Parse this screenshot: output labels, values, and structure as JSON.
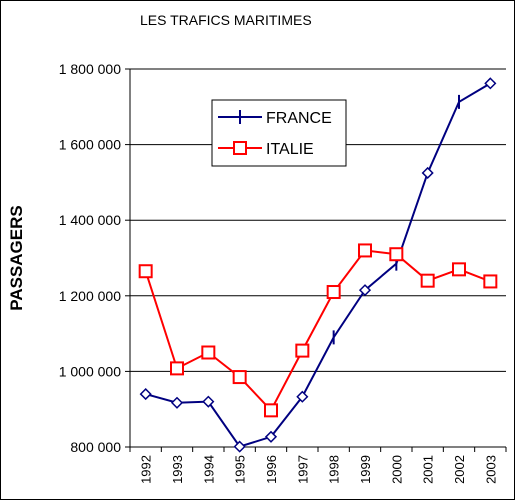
{
  "chart_data": {
    "type": "line",
    "title": "LES TRAFICS MARITIMES",
    "xlabel": "",
    "ylabel": "PASSAGERS",
    "ylim": [
      800000,
      1800000
    ],
    "y_ticks": [
      "800 000",
      "1 000 000",
      "1 200 000",
      "1 400 000",
      "1 600 000",
      "1 800 000"
    ],
    "y_tick_values": [
      800000,
      1000000,
      1200000,
      1400000,
      1600000,
      1800000
    ],
    "categories": [
      "1992",
      "1993",
      "1994",
      "1995",
      "1996",
      "1997",
      "1998",
      "1999",
      "2000",
      "2001",
      "2002",
      "2003"
    ],
    "grid": true,
    "legend_position": "top-center",
    "series": [
      {
        "name": "FRANCE",
        "color": "#000080",
        "marker": "mixed-diamond-plus",
        "values": [
          940000,
          917000,
          920000,
          801000,
          827000,
          933000,
          1090000,
          1215000,
          1285000,
          1525000,
          1713000,
          1762000
        ]
      },
      {
        "name": "ITALIE",
        "color": "#ff0000",
        "marker": "square",
        "values": [
          1265000,
          1008000,
          1050000,
          985000,
          897000,
          1055000,
          1210000,
          1320000,
          1310000,
          1240000,
          1270000,
          1238000
        ]
      }
    ]
  }
}
